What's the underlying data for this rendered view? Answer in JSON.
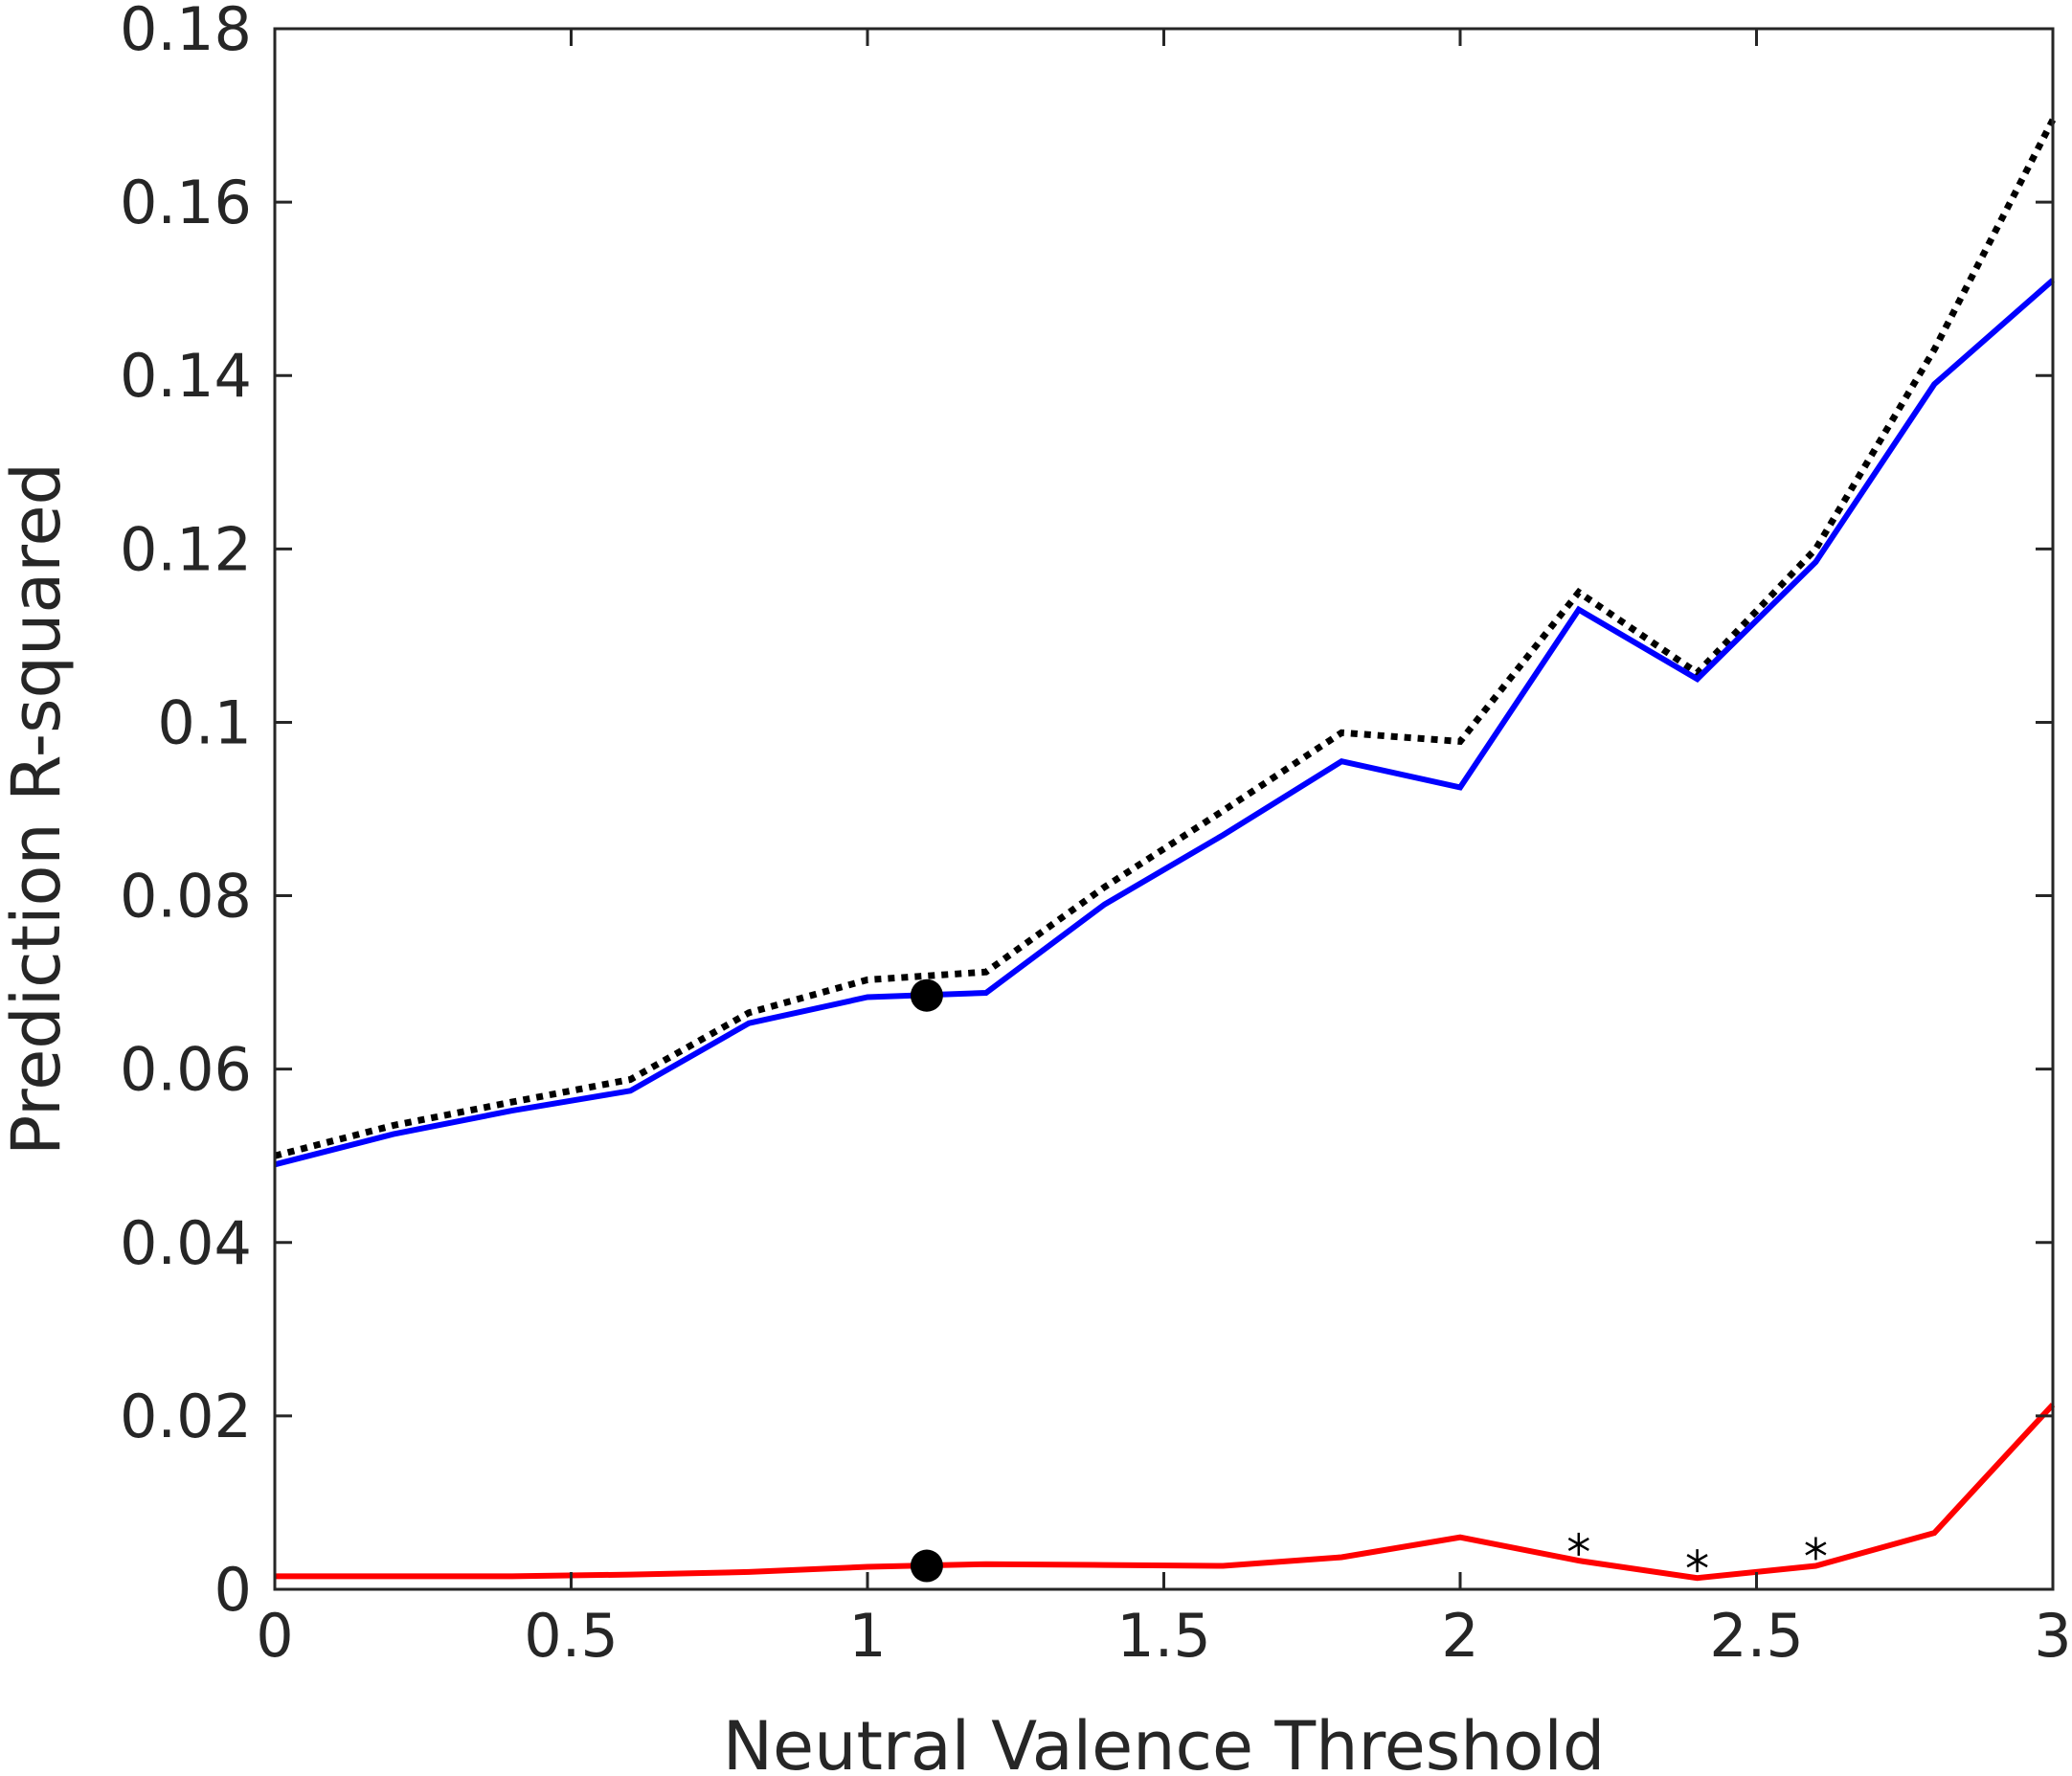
{
  "chart_data": {
    "type": "line",
    "title": "",
    "xlabel": "Neutral Valence Threshold",
    "ylabel": "Prediction R-squared",
    "xlim": [
      0,
      3
    ],
    "ylim": [
      0,
      0.18
    ],
    "grid": false,
    "xticks": [
      0,
      0.5,
      1,
      1.5,
      2,
      2.5,
      3
    ],
    "xtick_labels": [
      "0",
      "0.5",
      "1",
      "1.5",
      "2",
      "2.5",
      "3"
    ],
    "yticks": [
      0,
      0.02,
      0.04,
      0.06,
      0.08,
      0.1,
      0.12,
      0.14,
      0.16,
      0.18
    ],
    "ytick_labels": [
      "0",
      "0.02",
      "0.04",
      "0.06",
      "0.08",
      "0.1",
      "0.12",
      "0.14",
      "0.16",
      "0.18"
    ],
    "x": [
      0,
      0.2,
      0.4,
      0.6,
      0.8,
      1.0,
      1.2,
      1.4,
      1.6,
      1.8,
      2.0,
      2.2,
      2.4,
      2.6,
      2.8,
      3.0
    ],
    "series": [
      {
        "color": "#000000",
        "style": "dotted",
        "values": [
          0.05,
          0.0535,
          0.0562,
          0.0588,
          0.0665,
          0.0703,
          0.0712,
          0.081,
          0.0898,
          0.0988,
          0.0978,
          0.115,
          0.1057,
          0.12,
          0.143,
          0.1695
        ]
      },
      {
        "color": "#0000ff",
        "style": "solid",
        "values": [
          0.049,
          0.0525,
          0.0552,
          0.0575,
          0.0653,
          0.0683,
          0.0688,
          0.079,
          0.087,
          0.0955,
          0.0925,
          0.113,
          0.105,
          0.1185,
          0.139,
          0.151
        ]
      },
      {
        "color": "#ff0000",
        "style": "solid",
        "values": [
          0.0015,
          0.0015,
          0.0015,
          0.0017,
          0.002,
          0.0026,
          0.0029,
          0.0028,
          0.0027,
          0.0037,
          0.006,
          0.0033,
          0.0013,
          0.0027,
          0.0065,
          0.0213
        ]
      }
    ],
    "markers": [
      {
        "shape": "filled-circle",
        "x": 1.1,
        "y": 0.0685,
        "color": "#000000"
      },
      {
        "shape": "filled-circle",
        "x": 1.1,
        "y": 0.0027,
        "color": "#000000"
      },
      {
        "shape": "asterisk",
        "x": 2.2,
        "y": 0.0052,
        "color": "#000000"
      },
      {
        "shape": "asterisk",
        "x": 2.4,
        "y": 0.0033,
        "color": "#000000"
      },
      {
        "shape": "asterisk",
        "x": 2.6,
        "y": 0.0047,
        "color": "#000000"
      }
    ]
  }
}
